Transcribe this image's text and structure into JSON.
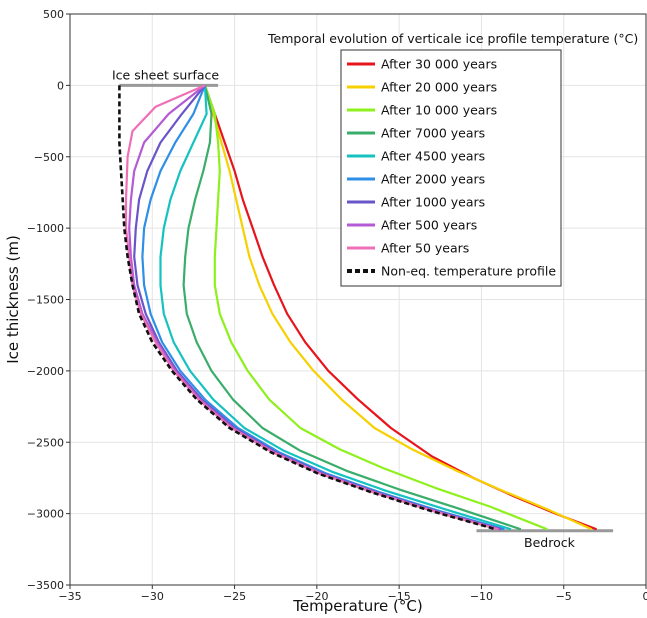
{
  "chart_data": {
    "type": "line",
    "title": "Temporal evolution of verticale ice profile temperature (°C)",
    "xlabel": "Temperature (°C)",
    "ylabel": "Ice thickness (m)",
    "xlim": [
      -35,
      0
    ],
    "ylim": [
      -3500,
      500
    ],
    "xticks": [
      "−35",
      "−30",
      "−25",
      "−20",
      "−15",
      "−10",
      "−5",
      "0"
    ],
    "yticks": [
      "500",
      "0",
      "−500",
      "−1000",
      "−1500",
      "−2000",
      "−2500",
      "−3000",
      "−3500"
    ],
    "grid": true,
    "legend_position": "top-right",
    "annotations": {
      "surface": "Ice sheet surface",
      "bedrock": "Bedrock"
    },
    "reference_lines": {
      "surface": {
        "x": [
          -32,
          -26
        ],
        "y": 0,
        "color": "#999999"
      },
      "bedrock": {
        "x": [
          -10.3,
          -2
        ],
        "y": -3120,
        "color": "#999999"
      }
    },
    "series": [
      {
        "name": "After 30 000 years",
        "color": "#e8141b",
        "dash": false,
        "points": [
          [
            -26.8,
            0
          ],
          [
            -26.2,
            -200
          ],
          [
            -25.6,
            -400
          ],
          [
            -25.0,
            -600
          ],
          [
            -24.5,
            -800
          ],
          [
            -23.9,
            -1000
          ],
          [
            -23.3,
            -1200
          ],
          [
            -22.6,
            -1400
          ],
          [
            -21.8,
            -1600
          ],
          [
            -20.7,
            -1800
          ],
          [
            -19.3,
            -2000
          ],
          [
            -17.5,
            -2200
          ],
          [
            -15.5,
            -2400
          ],
          [
            -13.0,
            -2600
          ],
          [
            -10.5,
            -2750
          ],
          [
            -8.0,
            -2880
          ],
          [
            -5.5,
            -3000
          ],
          [
            -3.0,
            -3110
          ]
        ]
      },
      {
        "name": "After 20 000 years",
        "color": "#f7d000",
        "dash": false,
        "points": [
          [
            -26.8,
            0
          ],
          [
            -26.3,
            -200
          ],
          [
            -25.8,
            -400
          ],
          [
            -25.3,
            -600
          ],
          [
            -24.9,
            -800
          ],
          [
            -24.5,
            -1000
          ],
          [
            -24.1,
            -1200
          ],
          [
            -23.5,
            -1400
          ],
          [
            -22.7,
            -1600
          ],
          [
            -21.6,
            -1800
          ],
          [
            -20.2,
            -2000
          ],
          [
            -18.5,
            -2200
          ],
          [
            -16.5,
            -2400
          ],
          [
            -14.2,
            -2550
          ],
          [
            -11.5,
            -2700
          ],
          [
            -8.5,
            -2850
          ],
          [
            -6.0,
            -2970
          ],
          [
            -3.3,
            -3110
          ]
        ]
      },
      {
        "name": "After 10 000 years",
        "color": "#8ef01c",
        "dash": false,
        "points": [
          [
            -26.8,
            0
          ],
          [
            -26.2,
            -200
          ],
          [
            -26.0,
            -400
          ],
          [
            -25.9,
            -600
          ],
          [
            -26.0,
            -800
          ],
          [
            -26.1,
            -1000
          ],
          [
            -26.2,
            -1200
          ],
          [
            -26.2,
            -1400
          ],
          [
            -25.9,
            -1600
          ],
          [
            -25.2,
            -1800
          ],
          [
            -24.2,
            -2000
          ],
          [
            -22.9,
            -2200
          ],
          [
            -21.0,
            -2400
          ],
          [
            -18.6,
            -2550
          ],
          [
            -16.0,
            -2680
          ],
          [
            -12.8,
            -2820
          ],
          [
            -9.5,
            -2950
          ],
          [
            -6.0,
            -3110
          ]
        ]
      },
      {
        "name": "After 7000 years",
        "color": "#3aad6a",
        "dash": false,
        "points": [
          [
            -26.8,
            0
          ],
          [
            -26.4,
            -200
          ],
          [
            -26.5,
            -400
          ],
          [
            -26.9,
            -600
          ],
          [
            -27.4,
            -800
          ],
          [
            -27.8,
            -1000
          ],
          [
            -28.0,
            -1200
          ],
          [
            -28.1,
            -1400
          ],
          [
            -27.9,
            -1600
          ],
          [
            -27.3,
            -1800
          ],
          [
            -26.4,
            -2000
          ],
          [
            -25.1,
            -2200
          ],
          [
            -23.3,
            -2400
          ],
          [
            -21.0,
            -2560
          ],
          [
            -18.2,
            -2700
          ],
          [
            -15.0,
            -2830
          ],
          [
            -11.5,
            -2960
          ],
          [
            -7.6,
            -3110
          ]
        ]
      },
      {
        "name": "After 4500 years",
        "color": "#15c2c0",
        "dash": false,
        "points": [
          [
            -26.8,
            0
          ],
          [
            -26.7,
            -200
          ],
          [
            -27.5,
            -400
          ],
          [
            -28.3,
            -600
          ],
          [
            -28.9,
            -800
          ],
          [
            -29.3,
            -1000
          ],
          [
            -29.5,
            -1200
          ],
          [
            -29.5,
            -1400
          ],
          [
            -29.3,
            -1600
          ],
          [
            -28.7,
            -1800
          ],
          [
            -27.7,
            -2000
          ],
          [
            -26.3,
            -2200
          ],
          [
            -24.4,
            -2400
          ],
          [
            -22.0,
            -2560
          ],
          [
            -19.0,
            -2710
          ],
          [
            -15.8,
            -2840
          ],
          [
            -12.2,
            -2970
          ],
          [
            -8.2,
            -3110
          ]
        ]
      },
      {
        "name": "After 2000 years",
        "color": "#2f8ee6",
        "dash": false,
        "points": [
          [
            -26.8,
            0
          ],
          [
            -27.5,
            -200
          ],
          [
            -28.6,
            -400
          ],
          [
            -29.5,
            -600
          ],
          [
            -30.1,
            -800
          ],
          [
            -30.5,
            -1000
          ],
          [
            -30.6,
            -1200
          ],
          [
            -30.5,
            -1400
          ],
          [
            -30.1,
            -1600
          ],
          [
            -29.4,
            -1800
          ],
          [
            -28.3,
            -2000
          ],
          [
            -26.8,
            -2200
          ],
          [
            -24.8,
            -2400
          ],
          [
            -22.3,
            -2570
          ],
          [
            -19.4,
            -2720
          ],
          [
            -16.2,
            -2850
          ],
          [
            -12.6,
            -2980
          ],
          [
            -8.6,
            -3110
          ]
        ]
      },
      {
        "name": "After 1000 years",
        "color": "#6a54c9",
        "dash": false,
        "points": [
          [
            -26.8,
            0
          ],
          [
            -28.2,
            -200
          ],
          [
            -29.5,
            -400
          ],
          [
            -30.3,
            -600
          ],
          [
            -30.8,
            -800
          ],
          [
            -31.0,
            -1000
          ],
          [
            -31.1,
            -1200
          ],
          [
            -30.9,
            -1400
          ],
          [
            -30.4,
            -1600
          ],
          [
            -29.6,
            -1800
          ],
          [
            -28.5,
            -2000
          ],
          [
            -27.0,
            -2200
          ],
          [
            -25.0,
            -2400
          ],
          [
            -22.5,
            -2570
          ],
          [
            -19.6,
            -2720
          ],
          [
            -16.4,
            -2850
          ],
          [
            -12.8,
            -2980
          ],
          [
            -8.8,
            -3110
          ]
        ]
      },
      {
        "name": "After 500 years",
        "color": "#b35ad4",
        "dash": false,
        "points": [
          [
            -26.8,
            0
          ],
          [
            -29.0,
            -200
          ],
          [
            -30.5,
            -400
          ],
          [
            -31.1,
            -600
          ],
          [
            -31.3,
            -800
          ],
          [
            -31.4,
            -1000
          ],
          [
            -31.3,
            -1200
          ],
          [
            -31.1,
            -1400
          ],
          [
            -30.6,
            -1600
          ],
          [
            -29.7,
            -1800
          ],
          [
            -28.6,
            -2000
          ],
          [
            -27.1,
            -2200
          ],
          [
            -25.1,
            -2400
          ],
          [
            -22.6,
            -2570
          ],
          [
            -19.7,
            -2720
          ],
          [
            -16.5,
            -2850
          ],
          [
            -12.9,
            -2980
          ],
          [
            -8.9,
            -3110
          ]
        ]
      },
      {
        "name": "After 50 years",
        "color": "#ee6fb6",
        "dash": false,
        "points": [
          [
            -26.8,
            0
          ],
          [
            -29.8,
            -150
          ],
          [
            -31.2,
            -320
          ],
          [
            -31.5,
            -500
          ],
          [
            -31.6,
            -800
          ],
          [
            -31.6,
            -1000
          ],
          [
            -31.4,
            -1200
          ],
          [
            -31.2,
            -1400
          ],
          [
            -30.7,
            -1600
          ],
          [
            -29.8,
            -1800
          ],
          [
            -28.7,
            -2000
          ],
          [
            -27.2,
            -2200
          ],
          [
            -25.2,
            -2400
          ],
          [
            -22.7,
            -2570
          ],
          [
            -19.8,
            -2720
          ],
          [
            -16.6,
            -2850
          ],
          [
            -13.0,
            -2980
          ],
          [
            -9.0,
            -3110
          ]
        ]
      },
      {
        "name": "Non-eq. temperature profile",
        "color": "#111111",
        "dash": true,
        "points": [
          [
            -32.0,
            0
          ],
          [
            -32.0,
            -200
          ],
          [
            -32.0,
            -400
          ],
          [
            -31.9,
            -600
          ],
          [
            -31.8,
            -800
          ],
          [
            -31.7,
            -1000
          ],
          [
            -31.5,
            -1200
          ],
          [
            -31.2,
            -1400
          ],
          [
            -30.8,
            -1600
          ],
          [
            -30.0,
            -1800
          ],
          [
            -28.8,
            -2000
          ],
          [
            -27.3,
            -2200
          ],
          [
            -25.3,
            -2400
          ],
          [
            -22.8,
            -2570
          ],
          [
            -19.9,
            -2720
          ],
          [
            -16.7,
            -2850
          ],
          [
            -13.1,
            -2980
          ],
          [
            -9.1,
            -3110
          ]
        ]
      }
    ]
  }
}
